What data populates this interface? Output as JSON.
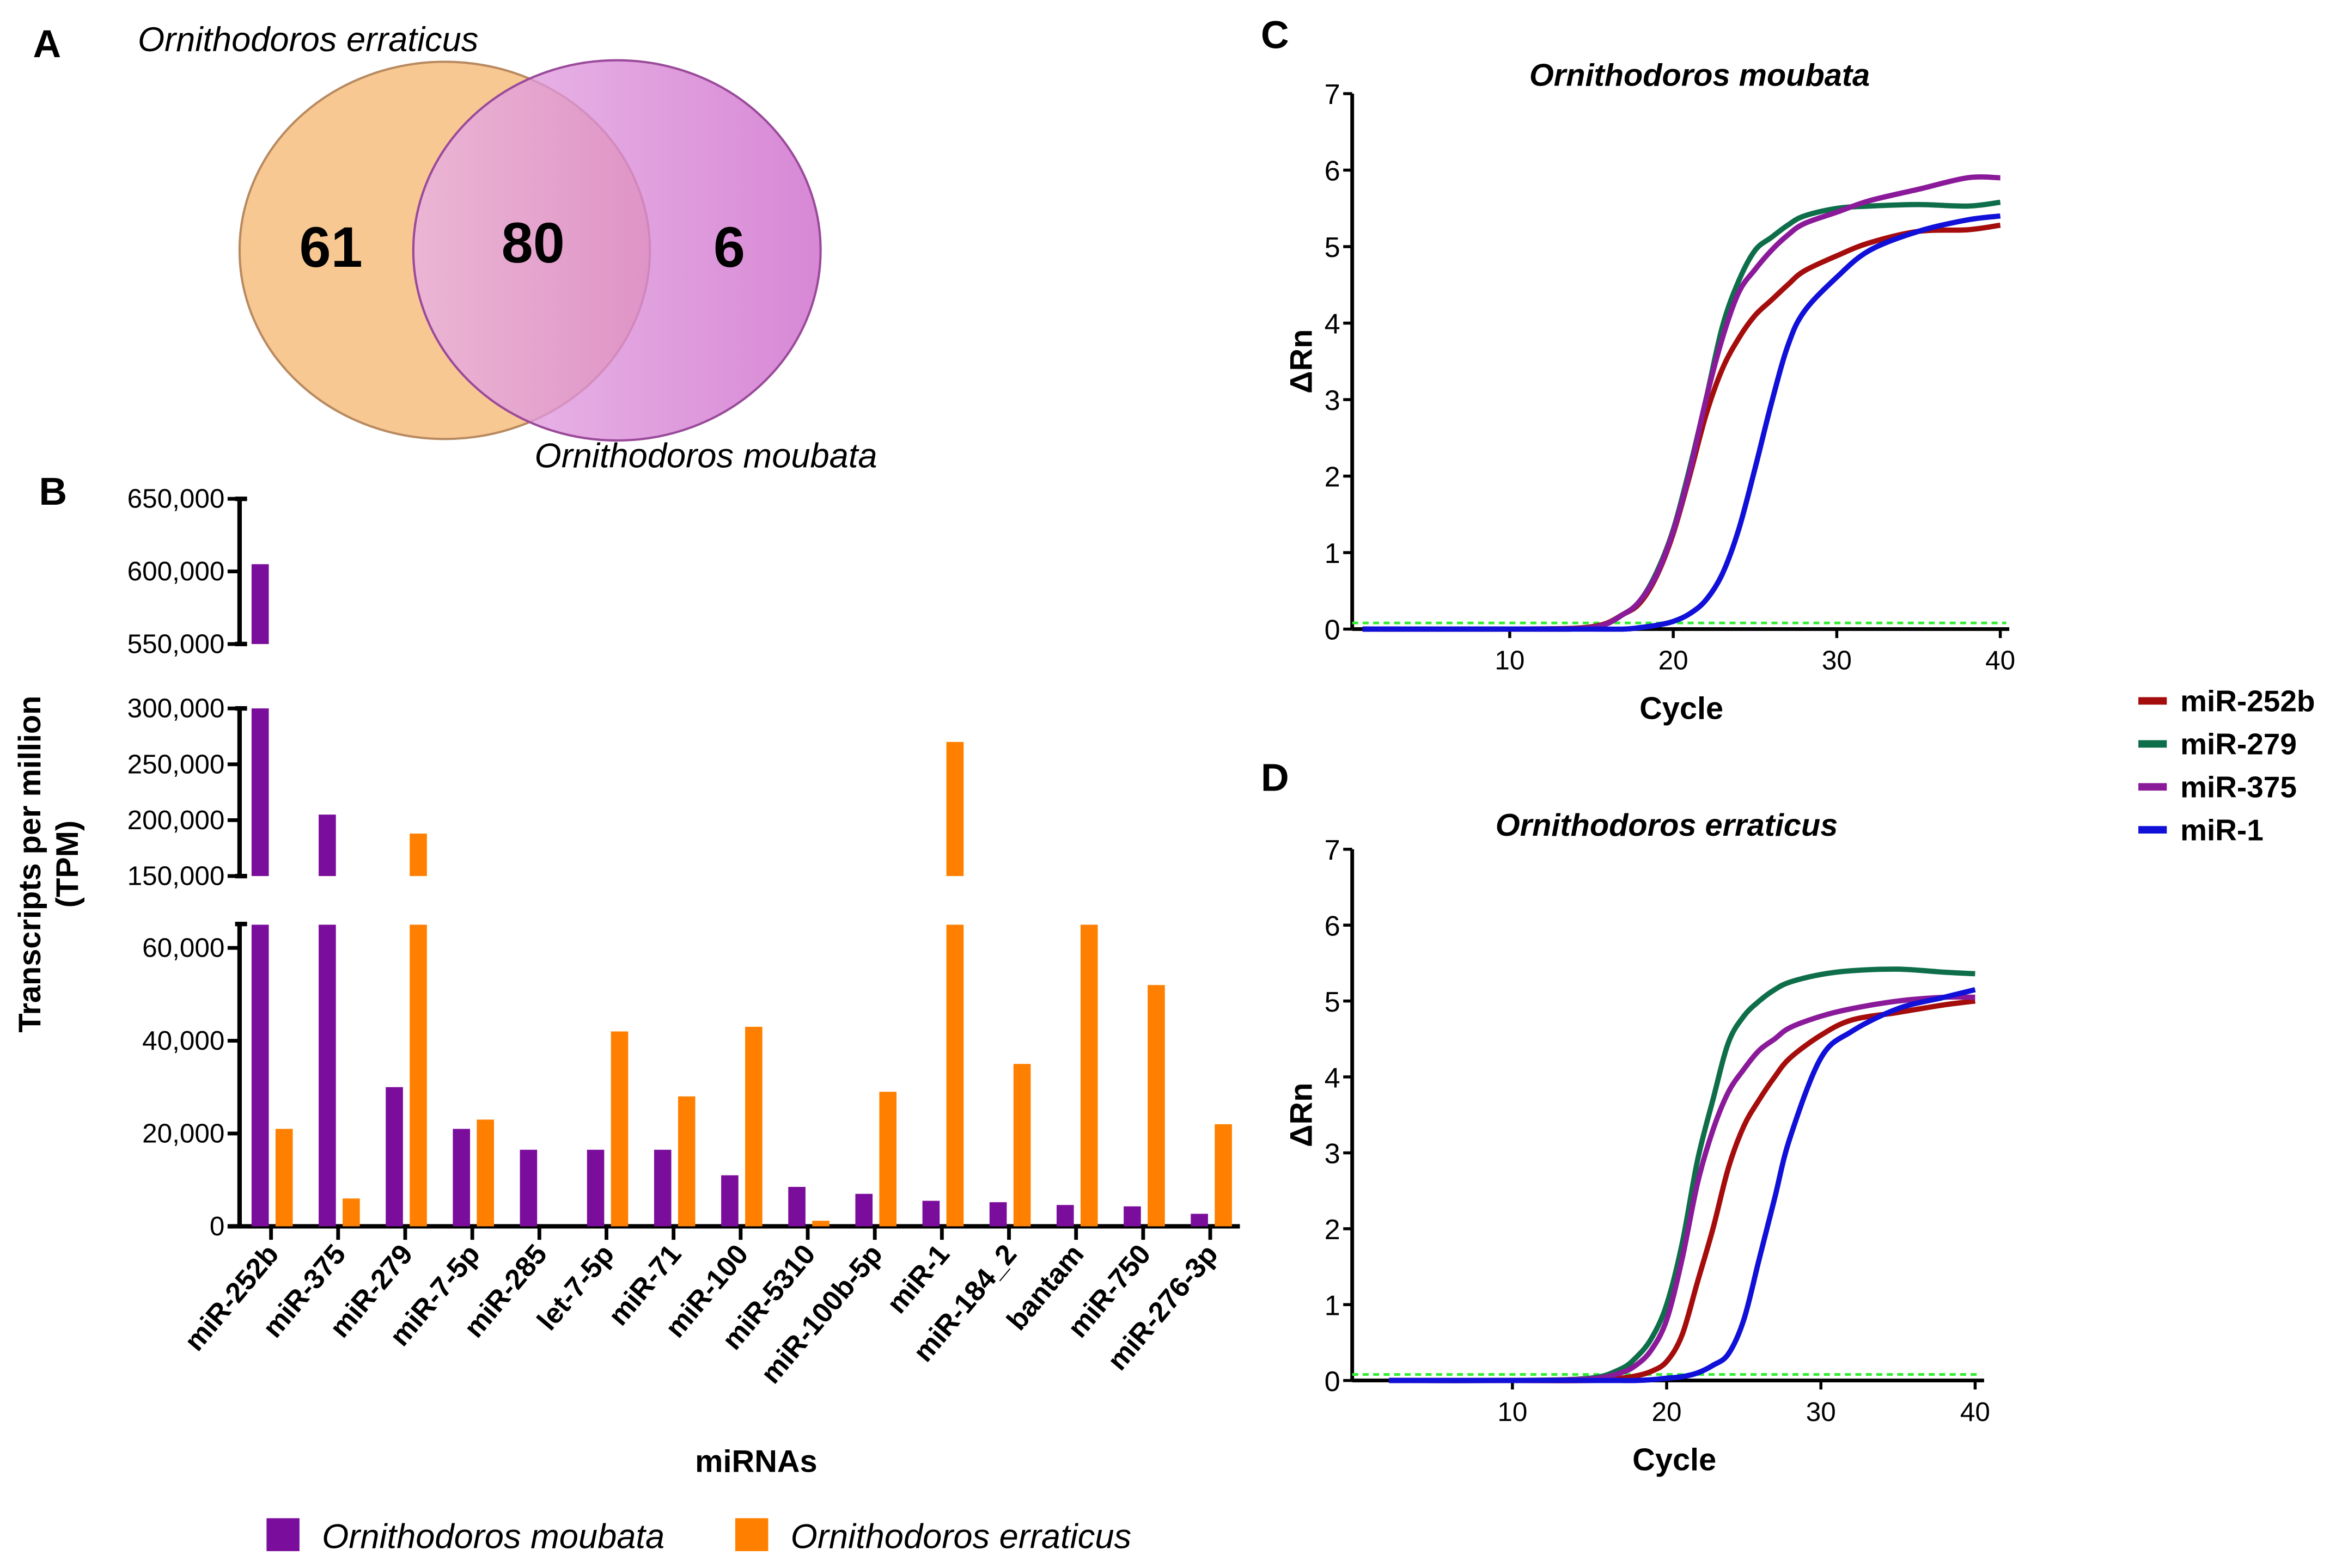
{
  "panels": {
    "a": "A",
    "b": "B",
    "c": "C",
    "d": "D"
  },
  "venn": {
    "left_label": "Ornithodoros erraticus",
    "right_label": "Ornithodoros moubata",
    "left_only": "61",
    "overlap": "80",
    "right_only": "6",
    "left_color": "#f5b36a",
    "right_color": "#cf6fcc"
  },
  "chart_data": [
    {
      "type": "bar",
      "panel": "B",
      "xlabel": "miRNAs",
      "ylabel": "Transcripts per million",
      "ylabel2": "(TPM)",
      "broken_axis_segments": [
        [
          0,
          65000
        ],
        [
          150000,
          300000
        ],
        [
          550000,
          650000
        ]
      ],
      "yticks": [
        {
          "value": 0,
          "label": "0"
        },
        {
          "value": 20000,
          "label": "20,000"
        },
        {
          "value": 40000,
          "label": "40,000"
        },
        {
          "value": 60000,
          "label": "60,000"
        },
        {
          "value": 150000,
          "label": "150,000"
        },
        {
          "value": 200000,
          "label": "200,000"
        },
        {
          "value": 250000,
          "label": "250,000"
        },
        {
          "value": 300000,
          "label": "300,000"
        },
        {
          "value": 550000,
          "label": "550,000"
        },
        {
          "value": 600000,
          "label": "600,000"
        },
        {
          "value": 650000,
          "label": "650,000"
        }
      ],
      "categories": [
        "miR-252b",
        "miR-375",
        "miR-279",
        "miR-7-5p",
        "miR-285",
        "let-7-5p",
        "miR-71",
        "miR-100",
        "miR-5310",
        "miR-100b-5p",
        "miR-1",
        "miR-184_2",
        "bantam",
        "miR-750",
        "miR-276-3p"
      ],
      "series": [
        {
          "name": "Ornithodoros moubata",
          "color": "#7b0d9c",
          "values": [
            605000,
            205000,
            30000,
            21000,
            16500,
            16500,
            16500,
            11000,
            8500,
            7000,
            5500,
            5200,
            4600,
            4300,
            2700
          ]
        },
        {
          "name": "Ornithodoros erraticus",
          "color": "#ff8000",
          "values": [
            21000,
            6000,
            188000,
            23000,
            0,
            42000,
            28000,
            43000,
            1200,
            29000,
            270000,
            35000,
            100000,
            52000,
            22000
          ]
        }
      ],
      "legend": "bottom"
    },
    {
      "type": "line",
      "panel": "C",
      "title": "Ornithodoros moubata",
      "xlabel": "Cycle",
      "ylabel": "ΔRn",
      "xlim": [
        0,
        40
      ],
      "ylim": [
        0,
        7
      ],
      "xticks": [
        10,
        20,
        30,
        40
      ],
      "yticks": [
        0,
        1,
        2,
        3,
        4,
        5,
        6,
        7
      ],
      "threshold": 0.08,
      "threshold_color": "#33ee33",
      "x": [
        1,
        10,
        15,
        17,
        18,
        19,
        20,
        21,
        22,
        23,
        24,
        25,
        26,
        27,
        28,
        30,
        32,
        35,
        38,
        40
      ],
      "series": [
        {
          "name": "miR-252b",
          "color": "#a50d0d",
          "values": [
            0,
            0,
            0.03,
            0.2,
            0.35,
            0.7,
            1.25,
            2.0,
            2.8,
            3.4,
            3.8,
            4.1,
            4.3,
            4.5,
            4.68,
            4.88,
            5.05,
            5.2,
            5.22,
            5.28
          ]
        },
        {
          "name": "miR-279",
          "color": "#0e6e4a",
          "values": [
            0,
            0,
            0.02,
            0.2,
            0.38,
            0.75,
            1.3,
            2.1,
            3.0,
            3.95,
            4.55,
            4.95,
            5.12,
            5.28,
            5.4,
            5.5,
            5.53,
            5.55,
            5.53,
            5.58
          ]
        },
        {
          "name": "miR-375",
          "color": "#8a1a9a",
          "values": [
            0,
            0,
            0.02,
            0.2,
            0.38,
            0.72,
            1.28,
            2.05,
            3.0,
            3.8,
            4.4,
            4.7,
            4.95,
            5.15,
            5.3,
            5.45,
            5.6,
            5.75,
            5.9,
            5.9
          ]
        },
        {
          "name": "miR-1",
          "color": "#1010d8",
          "values": [
            0,
            0,
            0,
            0,
            0.02,
            0.05,
            0.1,
            0.2,
            0.38,
            0.72,
            1.3,
            2.1,
            2.95,
            3.7,
            4.15,
            4.6,
            4.95,
            5.2,
            5.35,
            5.4
          ]
        }
      ]
    },
    {
      "type": "line",
      "panel": "D",
      "title": "Ornithodoros erraticus",
      "xlabel": "Cycle",
      "ylabel": "ΔRn",
      "xlim": [
        0,
        40
      ],
      "ylim": [
        0,
        7
      ],
      "xticks": [
        10,
        20,
        30,
        40
      ],
      "yticks": [
        0,
        1,
        2,
        3,
        4,
        5,
        6,
        7
      ],
      "threshold": 0.08,
      "threshold_color": "#33ee33",
      "x": [
        2,
        10,
        15,
        17,
        18,
        19,
        20,
        21,
        22,
        23,
        24,
        25,
        26,
        27,
        28,
        30,
        32,
        35,
        38,
        40
      ],
      "series": [
        {
          "name": "miR-252b",
          "color": "#a50d0d",
          "values": [
            0,
            0,
            0,
            0.03,
            0.06,
            0.12,
            0.25,
            0.6,
            1.3,
            2.0,
            2.8,
            3.35,
            3.7,
            4.0,
            4.25,
            4.55,
            4.75,
            4.85,
            4.95,
            5.0
          ]
        },
        {
          "name": "miR-279",
          "color": "#0e6e4a",
          "values": [
            0,
            0,
            0.03,
            0.15,
            0.3,
            0.55,
            1.0,
            1.8,
            2.9,
            3.7,
            4.45,
            4.8,
            5.0,
            5.15,
            5.25,
            5.35,
            5.4,
            5.42,
            5.38,
            5.36
          ]
        },
        {
          "name": "miR-375",
          "color": "#8a1a9a",
          "values": [
            0,
            0,
            0.02,
            0.1,
            0.2,
            0.4,
            0.8,
            1.6,
            2.6,
            3.3,
            3.8,
            4.1,
            4.35,
            4.5,
            4.65,
            4.8,
            4.9,
            5.0,
            5.05,
            5.05
          ]
        },
        {
          "name": "miR-1",
          "color": "#1010d8",
          "values": [
            0,
            0,
            0,
            0,
            0,
            0.01,
            0.03,
            0.05,
            0.1,
            0.2,
            0.35,
            0.8,
            1.6,
            2.4,
            3.2,
            4.25,
            4.6,
            4.9,
            5.05,
            5.15
          ]
        }
      ]
    }
  ],
  "line_legend": [
    {
      "label": "miR-252b",
      "color": "#a50d0d"
    },
    {
      "label": "miR-279",
      "color": "#0e6e4a"
    },
    {
      "label": "miR-375",
      "color": "#8a1a9a"
    },
    {
      "label": "miR-1",
      "color": "#1010d8"
    }
  ]
}
